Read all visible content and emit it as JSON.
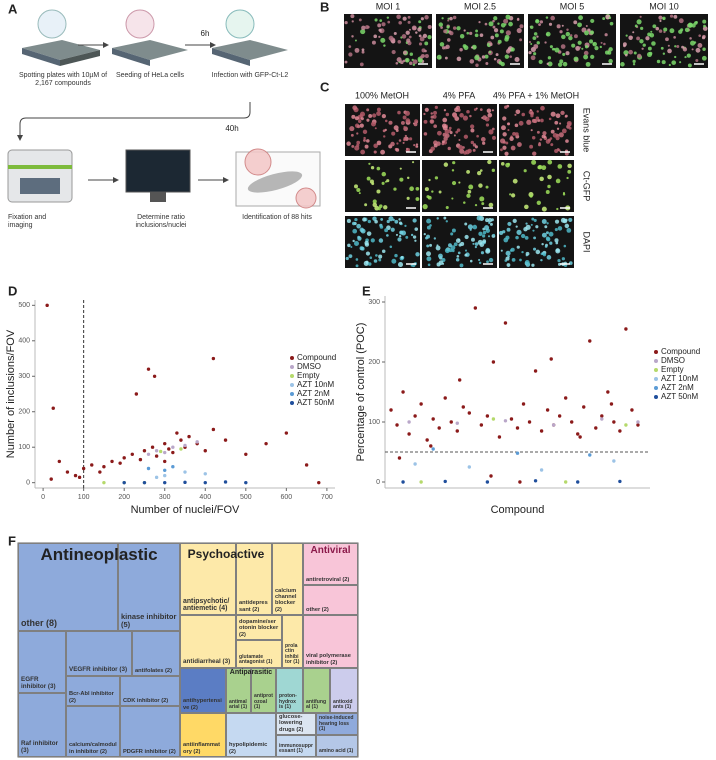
{
  "panel_labels": [
    "A",
    "B",
    "C",
    "D",
    "E",
    "F"
  ],
  "workflow": {
    "steps": [
      "Spotting plates with 10µM of 2,167 compounds",
      "Seeding of HeLa cells",
      "Infection with GFP-Ct-L2",
      "Fixation and imaging",
      "Determine ratio inclusions/nuclei",
      "Identification of 88 hits"
    ],
    "durations": [
      "6h",
      "40h"
    ]
  },
  "moi": {
    "labels": [
      "MOI 1",
      "MOI 2.5",
      "MOI 5",
      "MOI 10"
    ]
  },
  "fixation": {
    "columns": [
      "100% MetOH",
      "4% PFA",
      "4% PFA + 1% MetOH"
    ],
    "rows": [
      "Evans blue",
      "Ct-GFP",
      "DAPI"
    ]
  },
  "chart_data": [
    {
      "type": "scatter",
      "xlabel": "Number of nuclei/FOV",
      "ylabel": "Number of inclusions/FOV",
      "xlim": [
        -20,
        720
      ],
      "xticks": [
        0,
        100,
        200,
        300,
        400,
        500,
        600,
        700
      ],
      "ylim": [
        -15,
        515
      ],
      "yticks": [
        0,
        100,
        200,
        300,
        400,
        500
      ],
      "vline": 100,
      "series": [
        {
          "name": "Compound",
          "color": "#8b1a1a",
          "x": [
            10,
            25,
            40,
            20,
            60,
            80,
            100,
            120,
            150,
            170,
            200,
            220,
            240,
            250,
            270,
            280,
            300,
            310,
            320,
            340,
            350,
            360,
            380,
            400,
            420,
            260,
            275,
            230,
            450,
            500,
            550,
            600,
            650,
            680,
            300,
            330,
            190,
            140,
            90,
            420
          ],
          "values": [
            500,
            210,
            60,
            10,
            30,
            20,
            40,
            50,
            45,
            60,
            70,
            80,
            65,
            90,
            100,
            75,
            110,
            95,
            85,
            120,
            100,
            130,
            110,
            90,
            350,
            320,
            300,
            250,
            120,
            80,
            110,
            140,
            50,
            0,
            60,
            140,
            55,
            30,
            15,
            150
          ]
        },
        {
          "name": "DMSO",
          "color": "#b9a7c9",
          "x": [
            260,
            280,
            300,
            320,
            350,
            380
          ],
          "values": [
            80,
            90,
            85,
            100,
            105,
            115
          ]
        },
        {
          "name": "Empty",
          "color": "#b5d96b",
          "x": [
            150,
            200,
            250,
            290,
            340
          ],
          "values": [
            0,
            0,
            0,
            88,
            95
          ]
        },
        {
          "name": "AZT 10nM",
          "color": "#9cc3e6",
          "x": [
            280,
            300,
            350,
            400
          ],
          "values": [
            15,
            20,
            30,
            25
          ]
        },
        {
          "name": "AZT 2nM",
          "color": "#5b9bd5",
          "x": [
            260,
            300,
            320
          ],
          "values": [
            40,
            35,
            45
          ]
        },
        {
          "name": "AZT 50nM",
          "color": "#1f4e9c",
          "x": [
            200,
            250,
            300,
            350,
            400,
            450,
            500
          ],
          "values": [
            0,
            0,
            0,
            1,
            0,
            2,
            0
          ]
        }
      ]
    },
    {
      "type": "scatter",
      "xlabel": "Compound",
      "ylabel": "Percentage of control (POC)",
      "xlim": [
        0,
        2200
      ],
      "ylim": [
        -10,
        310
      ],
      "yticks": [
        0,
        100,
        200,
        300
      ],
      "hline": 50,
      "series": [
        {
          "name": "Compound",
          "color": "#8b1a1a",
          "x": [
            50,
            100,
            150,
            200,
            250,
            300,
            350,
            400,
            450,
            500,
            550,
            600,
            650,
            700,
            750,
            800,
            850,
            900,
            950,
            1000,
            1050,
            1100,
            1150,
            1200,
            1250,
            1300,
            1350,
            1400,
            1450,
            1500,
            1550,
            1600,
            1650,
            1700,
            1750,
            1800,
            1850,
            1900,
            1950,
            2000,
            2050,
            2100,
            120,
            380,
            620,
            880,
            1120,
            1380,
            1620,
            1880
          ],
          "values": [
            120,
            95,
            150,
            80,
            110,
            130,
            70,
            105,
            90,
            140,
            100,
            85,
            125,
            115,
            290,
            95,
            110,
            200,
            75,
            265,
            105,
            90,
            130,
            100,
            185,
            85,
            120,
            95,
            110,
            140,
            100,
            80,
            125,
            235,
            90,
            110,
            150,
            100,
            85,
            255,
            120,
            95,
            40,
            60,
            170,
            10,
            0,
            205,
            75,
            130
          ]
        },
        {
          "name": "DMSO",
          "color": "#b9a7c9",
          "x": [
            200,
            600,
            1000,
            1400,
            1800,
            2100
          ],
          "values": [
            100,
            98,
            102,
            95,
            105,
            100
          ]
        },
        {
          "name": "Empty",
          "color": "#b5d96b",
          "x": [
            300,
            900,
            1500,
            2000
          ],
          "values": [
            0,
            105,
            0,
            95
          ]
        },
        {
          "name": "AZT 10nM",
          "color": "#9cc3e6",
          "x": [
            250,
            700,
            1300,
            1900
          ],
          "values": [
            30,
            25,
            20,
            35
          ]
        },
        {
          "name": "AZT 2nM",
          "color": "#5b9bd5",
          "x": [
            400,
            1100,
            1700
          ],
          "values": [
            55,
            48,
            45
          ]
        },
        {
          "name": "AZT 50nM",
          "color": "#1f4e9c",
          "x": [
            150,
            500,
            850,
            1250,
            1600,
            1950
          ],
          "values": [
            0,
            1,
            0,
            2,
            0,
            1
          ]
        }
      ]
    },
    {
      "type": "treemap",
      "groups": [
        {
          "name": "Antineoplastic",
          "color": "#8eaadb",
          "children": [
            {
              "label": "other (8)",
              "value": 8
            },
            {
              "label": "kinase inhibitor (5)",
              "value": 5
            },
            {
              "label": "EGFR inhibitor (3)",
              "value": 3
            },
            {
              "label": "VEGFR inhibitor (3)",
              "value": 3
            },
            {
              "label": "antifolates (2)",
              "value": 2
            },
            {
              "label": "Raf inhibitor (3)",
              "value": 3
            },
            {
              "label": "Bcr-Abl inhibitor (2)",
              "value": 2
            },
            {
              "label": "CDK inhibitor (2)",
              "value": 2
            },
            {
              "label": "calcium/calmodulin inhibitor (2)",
              "value": 2
            },
            {
              "label": "PDGFR inhibitor (2)",
              "value": 2
            }
          ]
        },
        {
          "name": "Psychoactive",
          "color": "#fde9a9",
          "children": [
            {
              "label": "antipsychotic/antiemetic (4)",
              "value": 4
            },
            {
              "label": "antidepressant (2)",
              "value": 2
            },
            {
              "label": "calcium channel blocker (2)",
              "value": 2
            },
            {
              "label": "antidiarrheal (3)",
              "value": 3
            },
            {
              "label": "dopamine/serotonin blocker (2)",
              "value": 2
            },
            {
              "label": "glutamate antagonist (1)",
              "value": 1
            },
            {
              "label": "prolactin inhibitor (1)",
              "value": 1
            }
          ]
        },
        {
          "name": "Antiviral",
          "color": "#f8c5d8",
          "children": [
            {
              "label": "antiretroviral (2)",
              "value": 2
            },
            {
              "label": "other (2)",
              "value": 2
            },
            {
              "label": "viral polymerase inhibitor (2)",
              "value": 2
            }
          ]
        },
        {
          "name": "Antiparasitic",
          "color": "#a9d18e",
          "children": [
            {
              "label": "antimalarial (1)",
              "value": 1
            },
            {
              "label": "antiprotozoal (1)",
              "value": 1
            }
          ]
        },
        {
          "color": "#c5d9f1",
          "children": [
            {
              "label": "antihypertensive (2)",
              "value": 2,
              "color": "#5b7dc4"
            },
            {
              "label": "antiinflammatory (2)",
              "value": 2,
              "color": "#ffd966"
            },
            {
              "label": "hypolipidemic (2)",
              "value": 2,
              "color": "#c5d9f1"
            },
            {
              "label": "proton-hydrox is (1)",
              "value": 1,
              "color": "#9fd7d3"
            },
            {
              "label": "antifungal (1)",
              "value": 1,
              "color": "#a9d18e"
            },
            {
              "label": "antioxidants (1)",
              "value": 1,
              "color": "#ccccec"
            },
            {
              "label": "glucose-lowering drugs (2)",
              "value": 2,
              "color": "#dbe5f1"
            },
            {
              "label": "immunosuppressant (1)",
              "value": 1,
              "color": "#c5d9f1"
            },
            {
              "label": "noise-induced hearing loss (1)",
              "value": 1,
              "color": "#8faadc"
            },
            {
              "label": "amino acid (1)",
              "value": 1,
              "color": "#b4c7e7"
            }
          ]
        }
      ]
    }
  ]
}
